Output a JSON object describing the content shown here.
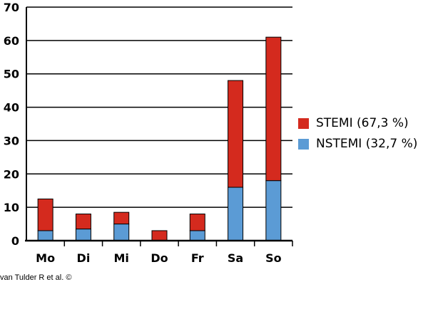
{
  "chart_data": {
    "type": "bar",
    "stacked": true,
    "categories": [
      "Mo",
      "Di",
      "Mi",
      "Do",
      "Fr",
      "Sa",
      "So"
    ],
    "series": [
      {
        "name": "NSTEMI (32,7 %)",
        "color": "#5b9bd5",
        "values": [
          3,
          3.5,
          5,
          0,
          3,
          16,
          18
        ]
      },
      {
        "name": "STEMI (67,3 %)",
        "color": "#d42a1e",
        "values": [
          9.5,
          4.5,
          3.5,
          3,
          5,
          32,
          43
        ]
      }
    ],
    "ylim": [
      0,
      70
    ],
    "yticks": [
      0,
      10,
      20,
      30,
      40,
      50,
      60,
      70
    ],
    "grid": true,
    "legend": "right"
  },
  "legend": [
    {
      "label": "STEMI (67,3 %)",
      "color": "#d42a1e"
    },
    {
      "label": "NSTEMI (32,7 %)",
      "color": "#5b9bd5"
    }
  ],
  "credit": "van Tulder R et al. ©"
}
